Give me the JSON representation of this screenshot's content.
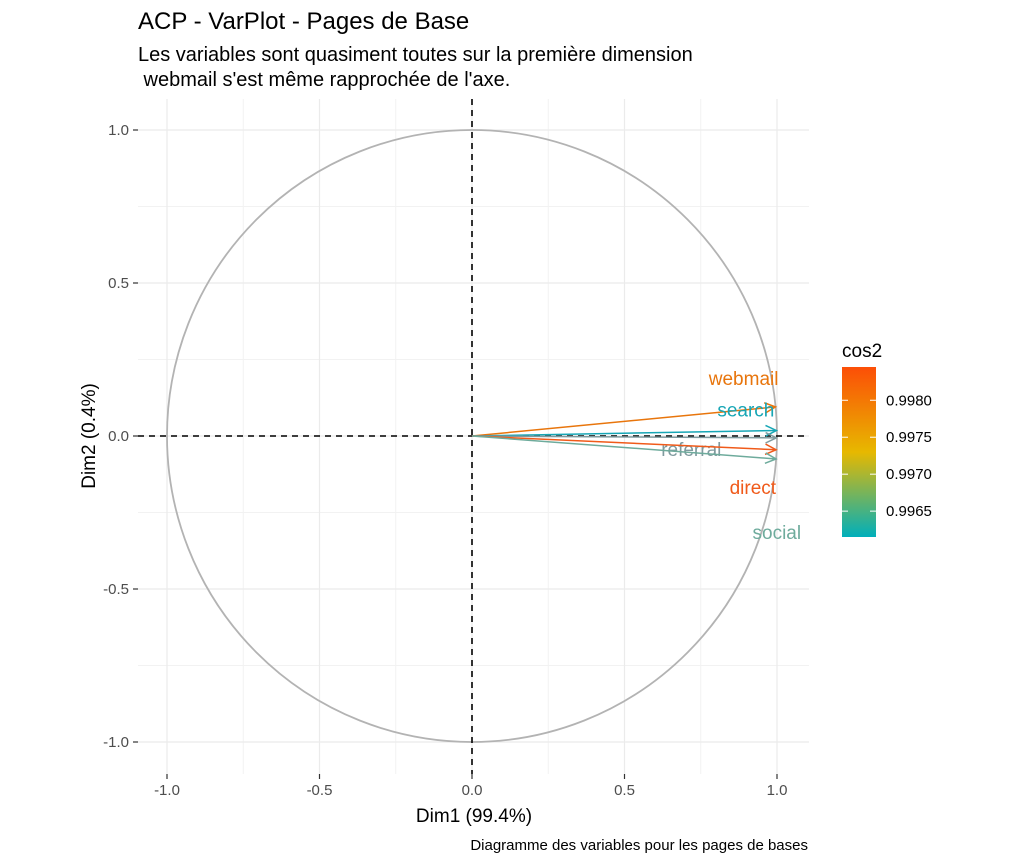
{
  "chart_data": {
    "type": "scatter",
    "title": "ACP - VarPlot - Pages de Base",
    "subtitle_lines": [
      "Les variables sont quasiment toutes sur la première dimension",
      " webmail s'est même rapprochée de l'axe."
    ],
    "xlabel": "Dim1 (99.4%)",
    "ylabel": "Dim2 (0.4%)",
    "caption": "Diagramme des variables pour les pages de bases",
    "xlim": [
      -1.1,
      1.1
    ],
    "ylim": [
      -1.07,
      1.07
    ],
    "x_ticks": [
      -1.0,
      -0.5,
      0.0,
      0.5,
      1.0
    ],
    "x_tick_labels": [
      "-1.0",
      "-0.5",
      "0.0",
      "0.5",
      "1.0"
    ],
    "y_ticks": [
      -1.0,
      -0.5,
      0.0,
      0.5,
      1.0
    ],
    "y_tick_labels": [
      "-1.0",
      "-0.5",
      "0.0",
      "0.5",
      "1.0"
    ],
    "grid": true,
    "correlation_circle": true,
    "variables": [
      {
        "name": "webmail",
        "x": 0.995,
        "y": 0.095,
        "cos2": 0.99835,
        "color": "#e8750c"
      },
      {
        "name": "search",
        "x": 0.998,
        "y": 0.018,
        "cos2": 0.99625,
        "color": "#17a6b5"
      },
      {
        "name": "referral",
        "x": 0.998,
        "y": -0.006,
        "cos2": 0.99655,
        "color": "#7f9a9e"
      },
      {
        "name": "direct",
        "x": 0.997,
        "y": -0.045,
        "cos2": 0.9984,
        "color": "#f05a1a"
      },
      {
        "name": "social",
        "x": 0.997,
        "y": -0.075,
        "cos2": 0.9966,
        "color": "#6eab9c"
      }
    ],
    "legend": {
      "title": "cos2",
      "position": "right",
      "range": [
        0.99615,
        0.99845
      ],
      "ticks": [
        0.9965,
        0.997,
        0.9975,
        0.998
      ],
      "tick_labels": [
        "0.9965",
        "0.9970",
        "0.9975",
        "0.9980"
      ],
      "gradient_colors": [
        "#00AFBB",
        "#E7B800",
        "#FC4E07"
      ]
    }
  }
}
